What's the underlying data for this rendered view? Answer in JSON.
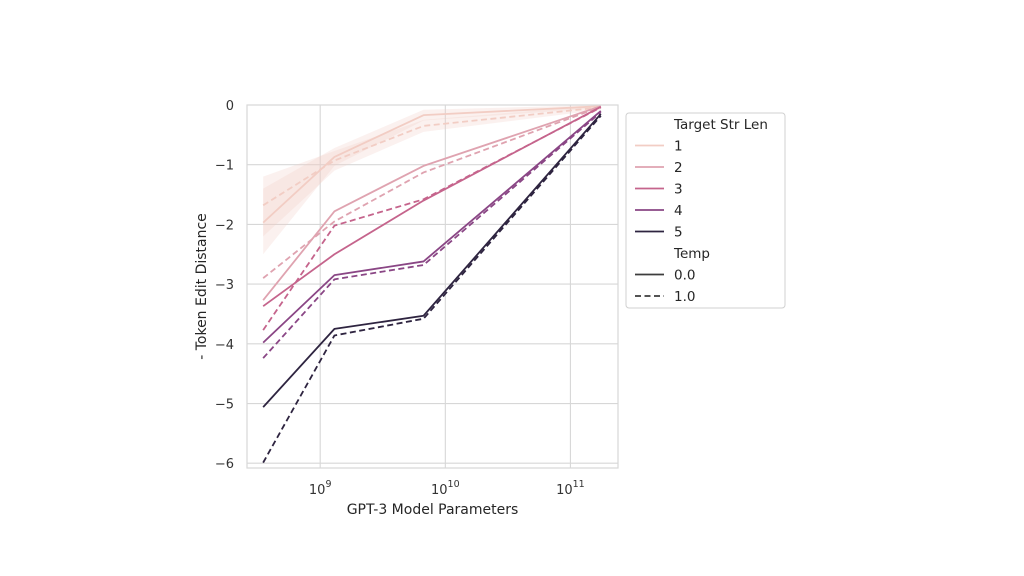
{
  "chart_data": {
    "type": "line",
    "xlabel": "GPT-3 Model Parameters",
    "ylabel": "- Token Edit Distance",
    "x_scale": "log",
    "xlim": [
      260000000,
      240000000000
    ],
    "ylim": [
      -6.08,
      0
    ],
    "grid": true,
    "x": [
      350000000,
      1300000000,
      6700000000,
      175000000000
    ],
    "x_ticks": [
      {
        "value": 1000000000,
        "base": "10",
        "exp": "9"
      },
      {
        "value": 10000000000,
        "base": "10",
        "exp": "10"
      },
      {
        "value": 100000000000,
        "base": "10",
        "exp": "11"
      }
    ],
    "y_ticks": [
      {
        "value": 0,
        "label": "0"
      },
      {
        "value": -1,
        "label": "−1"
      },
      {
        "value": -2,
        "label": "−2"
      },
      {
        "value": -3,
        "label": "−3"
      },
      {
        "value": -4,
        "label": "−4"
      },
      {
        "value": -5,
        "label": "−5"
      },
      {
        "value": -6,
        "label": "−6"
      }
    ],
    "series": [
      {
        "name": "1",
        "color": "#f2cdc4",
        "temp": "0.0",
        "values": [
          -1.97,
          -0.87,
          -0.17,
          -0.02
        ],
        "band": [
          [
            -1.4,
            -2.5
          ],
          [
            -0.72,
            -1.02
          ],
          [
            -0.08,
            -0.26
          ],
          [
            0.0,
            -0.05
          ]
        ]
      },
      {
        "name": "1",
        "color": "#f2cdc4",
        "temp": "1.0",
        "values": [
          -1.68,
          -0.93,
          -0.35,
          -0.04
        ],
        "band": [
          [
            -1.2,
            -2.2
          ],
          [
            -0.77,
            -1.1
          ],
          [
            -0.25,
            -0.45
          ],
          [
            0.0,
            -0.08
          ]
        ]
      },
      {
        "name": "2",
        "color": "#dfa3b0",
        "temp": "0.0",
        "values": [
          -3.27,
          -1.78,
          -1.02,
          -0.02
        ]
      },
      {
        "name": "2",
        "color": "#dfa3b0",
        "temp": "1.0",
        "values": [
          -2.9,
          -1.95,
          -1.13,
          -0.03
        ]
      },
      {
        "name": "3",
        "color": "#c5648c",
        "temp": "0.0",
        "values": [
          -3.37,
          -2.5,
          -1.6,
          -0.03
        ]
      },
      {
        "name": "3",
        "color": "#c5648c",
        "temp": "1.0",
        "values": [
          -3.77,
          -2.02,
          -1.58,
          -0.04
        ]
      },
      {
        "name": "4",
        "color": "#8a4685",
        "temp": "0.0",
        "values": [
          -3.98,
          -2.85,
          -2.62,
          -0.1
        ]
      },
      {
        "name": "4",
        "color": "#8a4685",
        "temp": "1.0",
        "values": [
          -4.24,
          -2.92,
          -2.68,
          -0.12
        ]
      },
      {
        "name": "5",
        "color": "#2e2440",
        "temp": "0.0",
        "values": [
          -5.06,
          -3.75,
          -3.53,
          -0.15
        ]
      },
      {
        "name": "5",
        "color": "#2e2440",
        "temp": "1.0",
        "values": [
          -5.99,
          -3.86,
          -3.58,
          -0.18
        ]
      }
    ],
    "legend": {
      "placement": "right, outside plot",
      "hue_title": "Target Str Len",
      "hue_entries": [
        {
          "label": "1",
          "color": "#f2cdc4"
        },
        {
          "label": "2",
          "color": "#dfa3b0"
        },
        {
          "label": "3",
          "color": "#c5648c"
        },
        {
          "label": "4",
          "color": "#8a4685"
        },
        {
          "label": "5",
          "color": "#2e2440"
        }
      ],
      "style_title": "Temp",
      "style_entries": [
        {
          "label": "0.0",
          "dash": "solid",
          "color": "#3d3d3d"
        },
        {
          "label": "1.0",
          "dash": "dashed",
          "color": "#3d3d3d"
        }
      ]
    },
    "colors": {
      "grid": "#d7d7d7",
      "frame": "#d7d7d7",
      "background": "#ffffff"
    }
  }
}
